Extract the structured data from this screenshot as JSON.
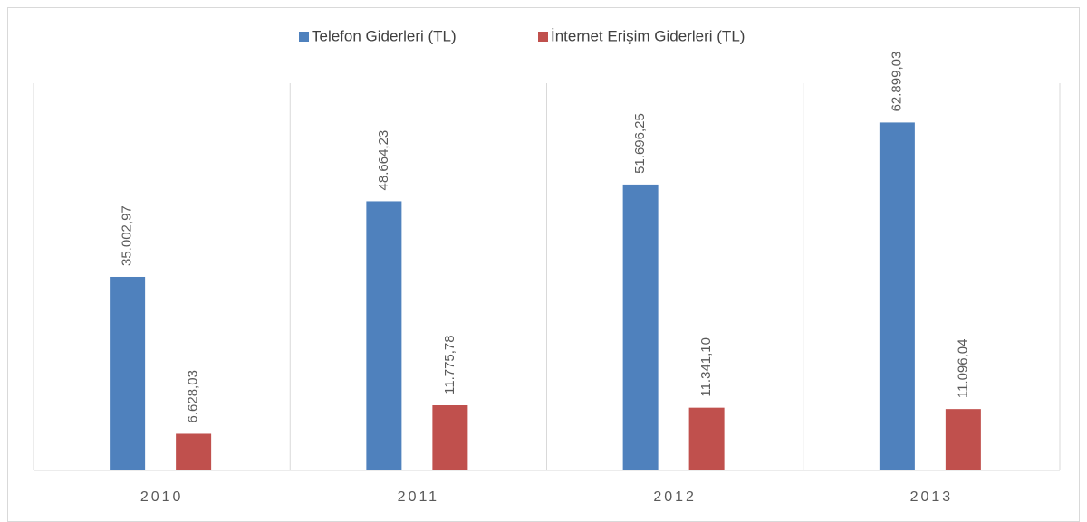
{
  "chart_data": {
    "type": "bar",
    "categories": [
      "2010",
      "2011",
      "2012",
      "2013"
    ],
    "series": [
      {
        "name": "Telefon Giderleri (TL)",
        "color": "#4f81bd",
        "values": [
          35002.97,
          48664.23,
          51696.25,
          62899.03
        ],
        "value_labels": [
          "35.002,97",
          "48.664,23",
          "51.696,25",
          "62.899,03"
        ]
      },
      {
        "name": "İnternet Erişim Giderleri (TL)",
        "color": "#c0504d",
        "values": [
          6628.03,
          11775.78,
          11341.1,
          11096.04
        ],
        "value_labels": [
          "6.628,03",
          "11.775,78",
          "11.341,10",
          "11.096,04"
        ]
      }
    ],
    "ylim": [
      0,
      70000
    ],
    "legend": "top"
  }
}
